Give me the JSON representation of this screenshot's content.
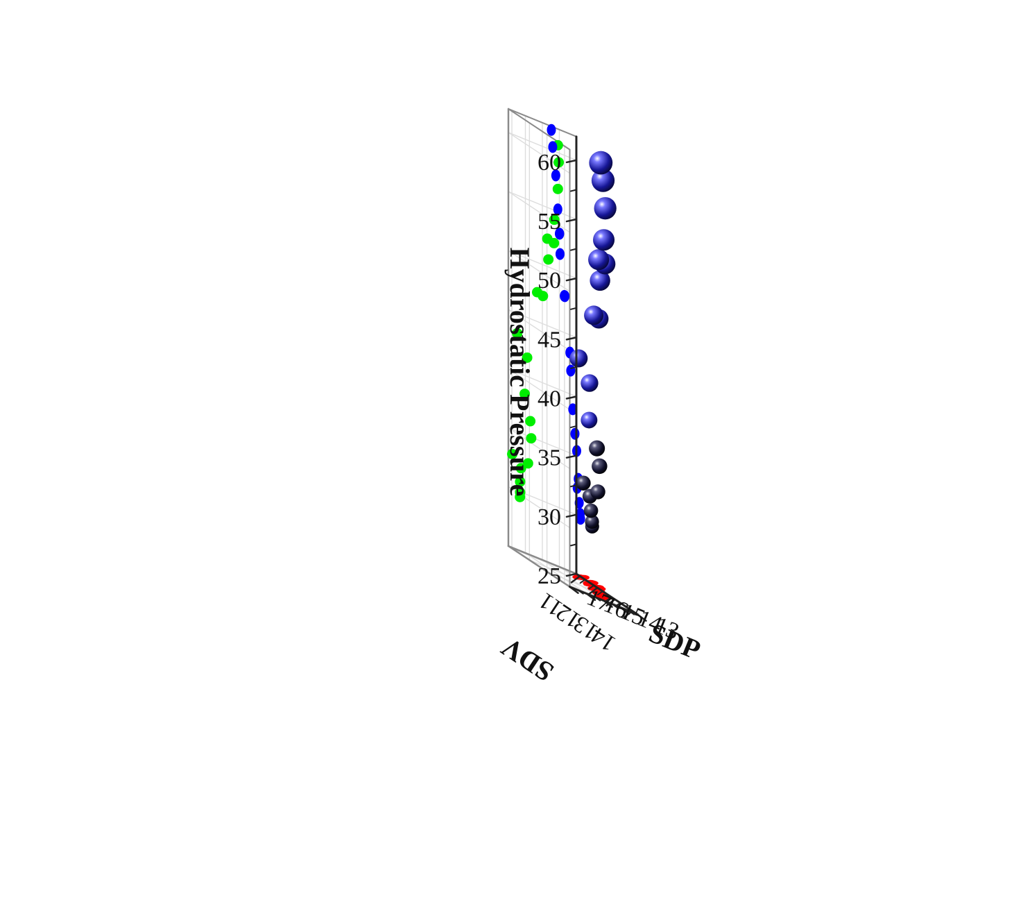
{
  "chart_data": {
    "type": "scatter",
    "subtype": "3d-scatter-with-wall-projections",
    "title": "",
    "xlabel": "SDV",
    "ylabel": "SDP",
    "zlabel": "Hydrostatic Pressure",
    "xlim": [
      10.8,
      14.3
    ],
    "ylim": [
      13,
      17
    ],
    "zlim": [
      25,
      62
    ],
    "x_ticks": [
      "11",
      "12",
      "13",
      "14"
    ],
    "y_ticks": [
      "13",
      "14",
      "15",
      "16",
      "17"
    ],
    "z_ticks": [
      "25",
      "30",
      "35",
      "40",
      "45",
      "50",
      "55",
      "60"
    ],
    "grid": true,
    "legend": "none",
    "colors": {
      "points": "#0d0d66",
      "sdv_wall_projection": "#0000ff",
      "sdp_wall_projection": "#00ee00",
      "floor_projection": "#ff0000",
      "grid": "#dddddd",
      "axes": "#555555"
    },
    "points": [
      {
        "x": 13.62,
        "y": 14.47,
        "z": 61.7
      },
      {
        "x": 13.67,
        "y": 14.39,
        "z": 60.3
      },
      {
        "x": 13.62,
        "y": 14.21,
        "z": 58.0
      },
      {
        "x": 13.42,
        "y": 14.09,
        "z": 55.2
      },
      {
        "x": 13.4,
        "y": 14.0,
        "z": 53.2
      },
      {
        "x": 13.02,
        "y": 13.98,
        "z": 53.2
      },
      {
        "x": 13.08,
        "y": 13.96,
        "z": 51.5
      },
      {
        "x": 12.77,
        "y": 13.71,
        "z": 48.1
      },
      {
        "x": 12.44,
        "y": 13.67,
        "z": 48.1
      },
      {
        "x": 11.3,
        "y": 13.38,
        "z": 43.5
      },
      {
        "x": 11.87,
        "y": 13.33,
        "z": 42.0
      },
      {
        "x": 11.73,
        "y": 13.21,
        "z": 38.8
      },
      {
        "x": 12.05,
        "y": 13.08,
        "z": 36.8
      },
      {
        "x": 12.1,
        "y": 12.98,
        "z": 35.4
      },
      {
        "x": 11.92,
        "y": 12.89,
        "z": 33.1
      },
      {
        "x": 11.52,
        "y": 12.95,
        "z": 32.3
      },
      {
        "x": 11.02,
        "y": 12.82,
        "z": 33.0
      },
      {
        "x": 11.47,
        "y": 12.83,
        "z": 31.1
      },
      {
        "x": 11.47,
        "y": 12.77,
        "z": 30.2
      },
      {
        "x": 11.46,
        "y": 12.75,
        "z": 29.8
      }
    ]
  }
}
